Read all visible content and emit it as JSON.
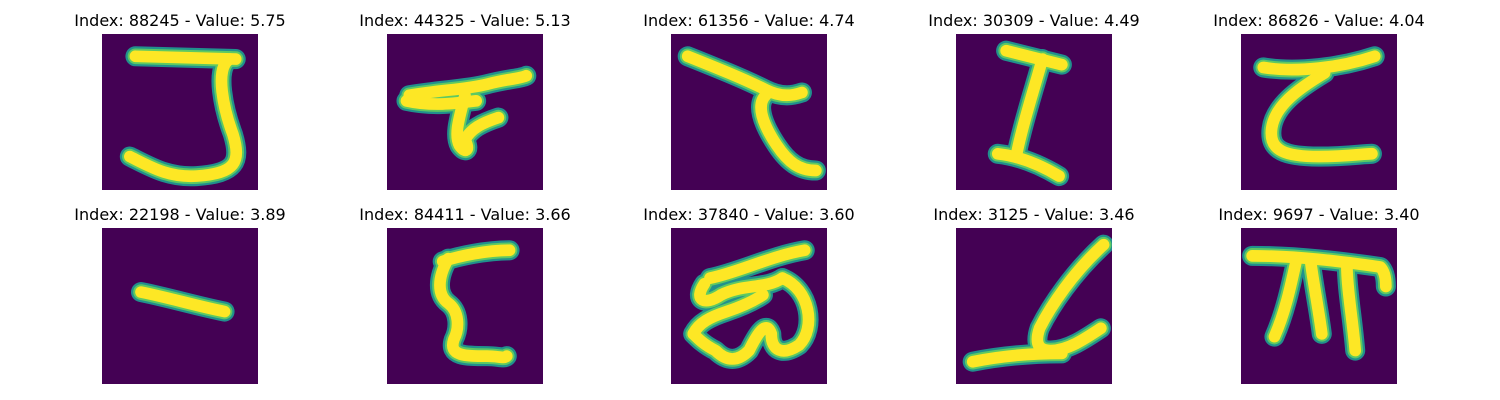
{
  "colors": {
    "background": "#440154",
    "stroke_edge": "#21908d",
    "stroke_mid": "#5ec962",
    "stroke_core": "#fde725",
    "title_text": "#000000"
  },
  "panels": [
    {
      "title": "Index: 88245 - Value: 5.75",
      "glyph": "J-shaped hook"
    },
    {
      "title": "Index: 44325 - Value: 5.13",
      "glyph": "flat blob with stem"
    },
    {
      "title": "Index: 61356 - Value: 4.74",
      "glyph": "diagonal stroke with curl"
    },
    {
      "title": "Index: 30309 - Value: 4.49",
      "glyph": "I-beam"
    },
    {
      "title": "Index: 86826 - Value: 4.04",
      "glyph": "C-like bracket"
    },
    {
      "title": "Index: 22198 - Value: 3.89",
      "glyph": "short slanted bar"
    },
    {
      "title": "Index: 84411 - Value: 3.66",
      "glyph": "S-like zigzag"
    },
    {
      "title": "Index: 37840 - Value: 3.60",
      "glyph": "looped scribble"
    },
    {
      "title": "Index: 3125 - Value: 3.46",
      "glyph": "L-like diagonal"
    },
    {
      "title": "Index: 9697 - Value: 3.40",
      "glyph": "pi-like three legs"
    }
  ]
}
